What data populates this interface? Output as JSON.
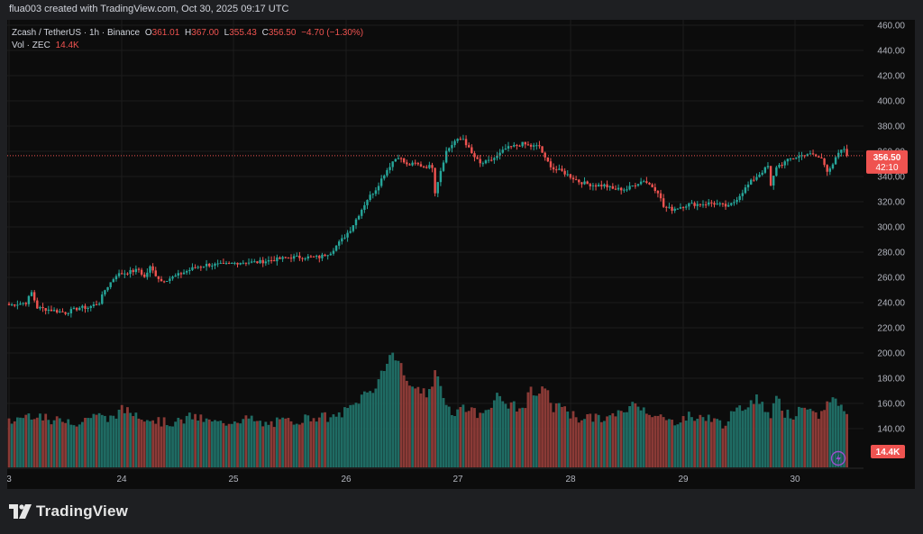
{
  "header": {
    "attribution": "flua003 created with TradingView.com, Oct 30, 2025 09:17 UTC"
  },
  "legend": {
    "symbol": "Zcash / TetherUS · 1h · Binance",
    "o_label": "O",
    "o_value": "361.01",
    "h_label": "H",
    "h_value": "367.00",
    "l_label": "L",
    "l_value": "355.43",
    "c_label": "C",
    "c_value": "356.50",
    "change": "−4.70 (−1.30%)",
    "vol_label": "Vol · ZEC",
    "vol_value": "14.4K"
  },
  "price_badge": {
    "price": "356.50",
    "countdown": "42:10"
  },
  "volume_badge": "14.4K",
  "brand": {
    "name": "TradingView"
  },
  "colors": {
    "up": "#26a69a",
    "down": "#ef5350",
    "up_vol": "#1f6b63",
    "down_vol": "#8a3a36",
    "background": "#0c0c0c",
    "grid": "#1c1c1c"
  },
  "chart_data": {
    "type": "candlestick",
    "interval": "1h",
    "y_axis": {
      "ticks": [
        "460.00",
        "440.00",
        "420.00",
        "400.00",
        "380.00",
        "360.00",
        "340.00",
        "320.00",
        "300.00",
        "280.00",
        "260.00",
        "240.00",
        "220.00",
        "200.00",
        "180.00",
        "160.00",
        "140.00"
      ],
      "range": [
        130,
        460
      ],
      "position": "right"
    },
    "x_axis": {
      "ticks": [
        "3",
        "24",
        "25",
        "26",
        "27",
        "28",
        "29",
        "30"
      ]
    },
    "last_price": 356.5,
    "anchors": [
      [
        0,
        238
      ],
      [
        6,
        240
      ],
      [
        8,
        248
      ],
      [
        10,
        236
      ],
      [
        15,
        234
      ],
      [
        20,
        232
      ],
      [
        25,
        236
      ],
      [
        28,
        236
      ],
      [
        32,
        240
      ],
      [
        34,
        250
      ],
      [
        38,
        262
      ],
      [
        42,
        264
      ],
      [
        46,
        266
      ],
      [
        48,
        260
      ],
      [
        50,
        268
      ],
      [
        52,
        262
      ],
      [
        54,
        257
      ],
      [
        58,
        260
      ],
      [
        62,
        264
      ],
      [
        66,
        268
      ],
      [
        70,
        270
      ],
      [
        76,
        270
      ],
      [
        82,
        272
      ],
      [
        88,
        272
      ],
      [
        94,
        274
      ],
      [
        100,
        276
      ],
      [
        106,
        276
      ],
      [
        110,
        276
      ],
      [
        114,
        280
      ],
      [
        118,
        290
      ],
      [
        121,
        298
      ],
      [
        124,
        310
      ],
      [
        127,
        322
      ],
      [
        130,
        330
      ],
      [
        133,
        342
      ],
      [
        136,
        352
      ],
      [
        138,
        356
      ],
      [
        141,
        349
      ],
      [
        144,
        350
      ],
      [
        147,
        348
      ],
      [
        150,
        348
      ],
      [
        151,
        328
      ],
      [
        153,
        345
      ],
      [
        155,
        360
      ],
      [
        158,
        368
      ],
      [
        161,
        370
      ],
      [
        164,
        358
      ],
      [
        167,
        350
      ],
      [
        170,
        352
      ],
      [
        173,
        356
      ],
      [
        176,
        362
      ],
      [
        179,
        364
      ],
      [
        182,
        366
      ],
      [
        185,
        364
      ],
      [
        188,
        364
      ],
      [
        190,
        354
      ],
      [
        193,
        346
      ],
      [
        196,
        344
      ],
      [
        199,
        340
      ],
      [
        202,
        336
      ],
      [
        205,
        334
      ],
      [
        208,
        333
      ],
      [
        211,
        333
      ],
      [
        214,
        330
      ],
      [
        217,
        330
      ],
      [
        219,
        330
      ],
      [
        222,
        334
      ],
      [
        225,
        337
      ],
      [
        228,
        332
      ],
      [
        230,
        328
      ],
      [
        232,
        316
      ],
      [
        235,
        314
      ],
      [
        238,
        316
      ],
      [
        241,
        318
      ],
      [
        245,
        318
      ],
      [
        249,
        319
      ],
      [
        253,
        317
      ],
      [
        255,
        316
      ],
      [
        257,
        320
      ],
      [
        260,
        328
      ],
      [
        263,
        336
      ],
      [
        266,
        342
      ],
      [
        269,
        348
      ],
      [
        270,
        332
      ],
      [
        272,
        348
      ],
      [
        274,
        350
      ],
      [
        277,
        354
      ],
      [
        280,
        356
      ],
      [
        283,
        358
      ],
      [
        286,
        356
      ],
      [
        288,
        354
      ],
      [
        290,
        345
      ],
      [
        292,
        350
      ],
      [
        294,
        358
      ],
      [
        296,
        362
      ],
      [
        297,
        357
      ]
    ],
    "volume_anchors": [
      [
        0,
        145
      ],
      [
        5,
        150
      ],
      [
        10,
        152
      ],
      [
        15,
        145
      ],
      [
        20,
        148
      ],
      [
        25,
        144
      ],
      [
        30,
        152
      ],
      [
        35,
        147
      ],
      [
        40,
        155
      ],
      [
        45,
        152
      ],
      [
        50,
        148
      ],
      [
        55,
        145
      ],
      [
        60,
        145
      ],
      [
        65,
        150
      ],
      [
        70,
        146
      ],
      [
        75,
        144
      ],
      [
        80,
        147
      ],
      [
        85,
        148
      ],
      [
        90,
        143
      ],
      [
        95,
        145
      ],
      [
        100,
        146
      ],
      [
        105,
        148
      ],
      [
        110,
        150
      ],
      [
        115,
        148
      ],
      [
        120,
        155
      ],
      [
        123,
        160
      ],
      [
        126,
        168
      ],
      [
        129,
        170
      ],
      [
        132,
        185
      ],
      [
        135,
        195
      ],
      [
        137,
        198
      ],
      [
        139,
        190
      ],
      [
        142,
        172
      ],
      [
        145,
        175
      ],
      [
        148,
        165
      ],
      [
        150,
        170
      ],
      [
        151,
        185
      ],
      [
        153,
        175
      ],
      [
        155,
        160
      ],
      [
        158,
        152
      ],
      [
        161,
        158
      ],
      [
        164,
        155
      ],
      [
        167,
        150
      ],
      [
        170,
        158
      ],
      [
        173,
        165
      ],
      [
        176,
        160
      ],
      [
        179,
        158
      ],
      [
        182,
        155
      ],
      [
        185,
        170
      ],
      [
        188,
        165
      ],
      [
        190,
        175
      ],
      [
        193,
        155
      ],
      [
        196,
        160
      ],
      [
        199,
        152
      ],
      [
        202,
        148
      ],
      [
        205,
        150
      ],
      [
        208,
        148
      ],
      [
        211,
        148
      ],
      [
        214,
        150
      ],
      [
        217,
        152
      ],
      [
        220,
        158
      ],
      [
        223,
        160
      ],
      [
        226,
        155
      ],
      [
        229,
        150
      ],
      [
        232,
        148
      ],
      [
        235,
        145
      ],
      [
        238,
        148
      ],
      [
        241,
        150
      ],
      [
        244,
        148
      ],
      [
        247,
        150
      ],
      [
        250,
        146
      ],
      [
        253,
        144
      ],
      [
        256,
        150
      ],
      [
        259,
        155
      ],
      [
        262,
        160
      ],
      [
        265,
        165
      ],
      [
        267,
        158
      ],
      [
        270,
        152
      ],
      [
        272,
        168
      ],
      [
        275,
        152
      ],
      [
        278,
        150
      ],
      [
        281,
        155
      ],
      [
        284,
        152
      ],
      [
        287,
        150
      ],
      [
        290,
        160
      ],
      [
        292,
        165
      ],
      [
        294,
        160
      ],
      [
        296,
        155
      ],
      [
        297,
        150
      ]
    ],
    "volume_last": "14.4K"
  }
}
